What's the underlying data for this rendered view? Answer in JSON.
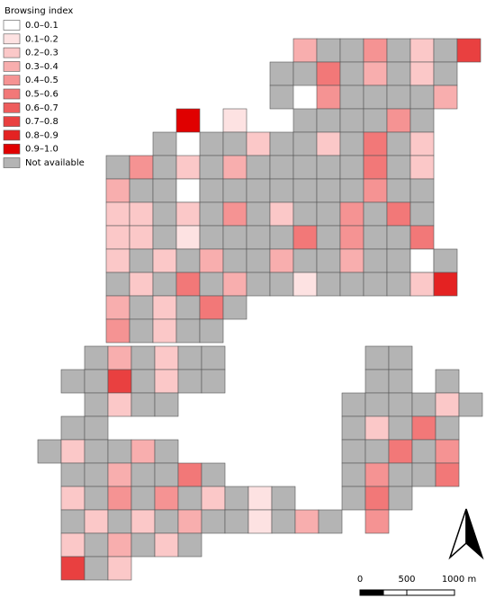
{
  "legend": {
    "title": "Browsing index",
    "items": [
      {
        "label": "0.0–0.1",
        "color": "#ffffff"
      },
      {
        "label": "0.1–0.2",
        "color": "#fde2e2"
      },
      {
        "label": "0.2–0.3",
        "color": "#fbc8c8"
      },
      {
        "label": "0.3–0.4",
        "color": "#f8aeae"
      },
      {
        "label": "0.4–0.5",
        "color": "#f59393"
      },
      {
        "label": "0.5–0.6",
        "color": "#f27878"
      },
      {
        "label": "0.6–0.7",
        "color": "#ee5c5c"
      },
      {
        "label": "0.7–0.8",
        "color": "#e94040"
      },
      {
        "label": "0.8–0.9",
        "color": "#e42222"
      },
      {
        "label": "0.9–1.0",
        "color": "#e00000"
      },
      {
        "label": "Not available",
        "color": "#b4b4b4"
      }
    ]
  },
  "scale_bar": {
    "labels": [
      "0",
      "500",
      "1000 m"
    ]
  }
}
